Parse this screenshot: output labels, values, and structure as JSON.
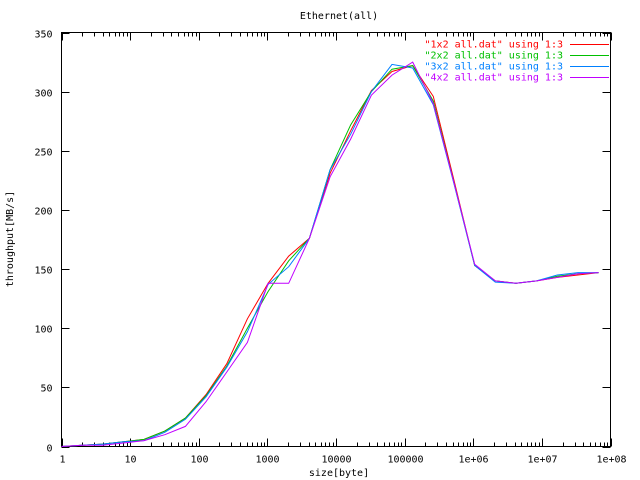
{
  "chart_data": {
    "type": "line",
    "title": "Ethernet(all)",
    "xlabel": "size[byte]",
    "ylabel": "throughput[MB/s]",
    "x_scale": "log",
    "xlim": [
      1,
      100000000
    ],
    "ylim": [
      0,
      350
    ],
    "x_ticks": [
      1,
      10,
      100,
      1000,
      10000,
      100000,
      1000000,
      10000000,
      100000000
    ],
    "x_tick_labels": [
      "1",
      "10",
      "100",
      "1000",
      "10000",
      "100000",
      "1e+06",
      "1e+07",
      "1e+08"
    ],
    "y_ticks": [
      0,
      50,
      100,
      150,
      200,
      250,
      300,
      350
    ],
    "y_tick_labels": [
      "0",
      "50",
      "100",
      "150",
      "200",
      "250",
      "300",
      "350"
    ],
    "grid": false,
    "legend_position": "top-right",
    "x": [
      1,
      2,
      4,
      8,
      16,
      32,
      64,
      128,
      256,
      512,
      1024,
      2048,
      4096,
      8192,
      16384,
      32768,
      65536,
      131072,
      262144,
      524288,
      1048576,
      2097152,
      4194304,
      8388608,
      16777216,
      33554432,
      67108864
    ],
    "series": [
      {
        "name": "\"1x2 all.dat\" using 1:3",
        "color": "#ff0000",
        "values": [
          0,
          1,
          2,
          4,
          6,
          13,
          24,
          44,
          70,
          108,
          138,
          161,
          176,
          231,
          267,
          301,
          317,
          322,
          296,
          225,
          153,
          140,
          138,
          140,
          143,
          145,
          147
        ]
      },
      {
        "name": "\"2x2 all.dat\" using 1:3",
        "color": "#00c000",
        "values": [
          0,
          1,
          2,
          4,
          6,
          13,
          24,
          43,
          68,
          100,
          131,
          157,
          176,
          234,
          272,
          300,
          319,
          322,
          292,
          223,
          153,
          140,
          138,
          140,
          144,
          146,
          147
        ]
      },
      {
        "name": "\"3x2 all.dat\" using 1:3",
        "color": "#0080ff",
        "values": [
          0,
          1,
          2,
          4,
          5,
          12,
          23,
          42,
          67,
          97,
          137,
          152,
          176,
          234,
          264,
          300,
          323,
          320,
          289,
          222,
          153,
          139,
          138,
          140,
          145,
          147,
          147
        ]
      },
      {
        "name": "\"4x2 all.dat\" using 1:3",
        "color": "#c000ff",
        "values": [
          0,
          1,
          1,
          3,
          5,
          10,
          17,
          38,
          63,
          88,
          138,
          138,
          176,
          228,
          260,
          297,
          314,
          325,
          290,
          223,
          154,
          140,
          138,
          140,
          143,
          146,
          147
        ]
      }
    ]
  }
}
